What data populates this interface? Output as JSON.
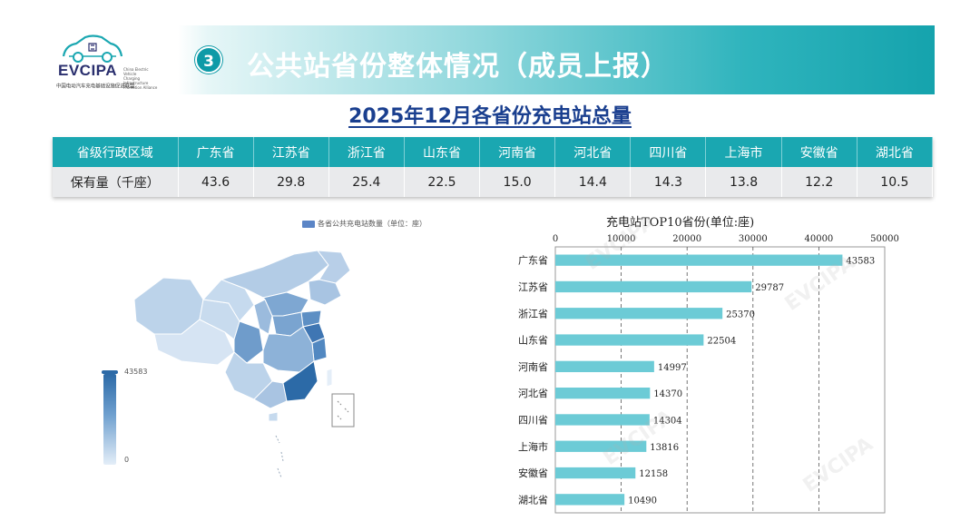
{
  "header": {
    "logo": {
      "brand": "EVCIPA",
      "english_lines": [
        "China Electric Vehicle",
        "Charging Infrastructure",
        "Promotion Alliance"
      ],
      "chinese_name": "中国电动汽车充电基础设施促进联盟"
    },
    "section_number": "3",
    "title": "公共站省份整体情况（成员上报）",
    "subtitle": "2025年12月各省份充电站总量"
  },
  "table": {
    "header_label": "省级行政区域",
    "value_label": "保有量（千座）",
    "provinces": [
      "广东省",
      "江苏省",
      "浙江省",
      "山东省",
      "河南省",
      "河北省",
      "四川省",
      "上海市",
      "安徽省",
      "湖北省"
    ],
    "values": [
      "43.6",
      "29.8",
      "25.4",
      "22.5",
      "15.0",
      "14.4",
      "14.3",
      "13.8",
      "12.2",
      "10.5"
    ]
  },
  "map": {
    "legend_label": "各省公共充电站数量（单位：座）",
    "scale_max": "43583",
    "scale_min": "0",
    "colors": {
      "high": "#2c6aa7",
      "mid": "#6fa0cf",
      "low": "#dbe8f5"
    }
  },
  "chart_data": {
    "type": "bar",
    "orientation": "horizontal",
    "title": "充电站TOP10省份(单位:座)",
    "categories": [
      "广东省",
      "江苏省",
      "浙江省",
      "山东省",
      "河南省",
      "河北省",
      "四川省",
      "上海市",
      "安徽省",
      "湖北省"
    ],
    "values": [
      43583,
      29787,
      25370,
      22504,
      14997,
      14370,
      14304,
      13816,
      12158,
      10490
    ],
    "xlim": [
      0,
      50000
    ],
    "xticks": [
      0,
      10000,
      20000,
      30000,
      40000,
      50000
    ],
    "axis_position": "top",
    "grid": true,
    "bar_color": "#6ccbd6"
  }
}
